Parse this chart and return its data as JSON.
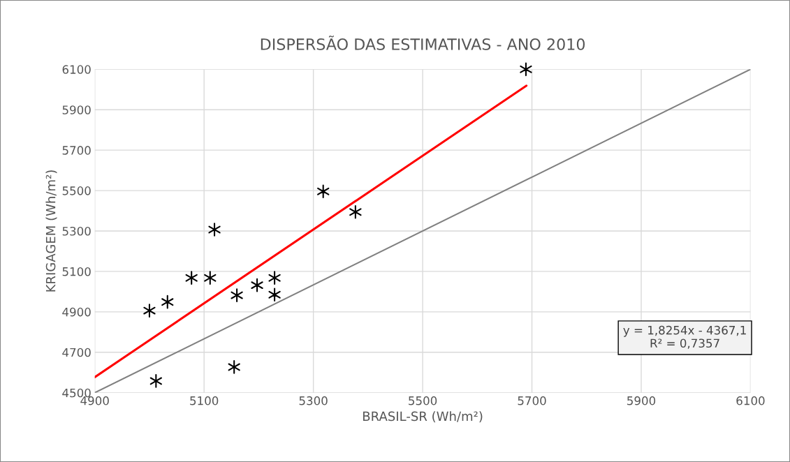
{
  "chart_data": {
    "type": "scatter",
    "title": "DISPERSÃO DAS ESTIMATIVAS - ANO 2010",
    "xlabel": "BRASIL-SR (Wh/m²)",
    "ylabel": "KRIGAGEM (Wh/m²)",
    "xlim": [
      4900,
      6100
    ],
    "xticks": [
      4900,
      5100,
      5300,
      5500,
      5700,
      5900,
      6100
    ],
    "ylim": [
      4500,
      6100
    ],
    "yticks": [
      4500,
      4700,
      4900,
      5100,
      5300,
      5500,
      5700,
      5900,
      6100
    ],
    "grid": true,
    "marker": "cross",
    "series": [
      {
        "color": "#000000",
        "x": [
          5000,
          5033,
          5077,
          5111,
          5119,
          5160,
          5197,
          5229,
          5229,
          5155,
          5012,
          5318,
          5377,
          5689
        ],
        "values": [
          4906,
          4949,
          5068,
          5068,
          5307,
          4982,
          5032,
          5068,
          4985,
          4627,
          4558,
          5496,
          5394,
          6100
        ]
      },
      {
        "type": "line",
        "color": "#ff0000",
        "marker": "none",
        "x": [
          4900,
          5690
        ],
        "values": [
          4577,
          6019
        ]
      },
      {
        "type": "line",
        "color": "#808080",
        "marker": "none",
        "x": [
          4900,
          6100
        ],
        "values": [
          4500,
          6100
        ]
      }
    ],
    "annotations": [
      "y = 1,8254x - 4367,1\nR² = 0,7357"
    ]
  }
}
